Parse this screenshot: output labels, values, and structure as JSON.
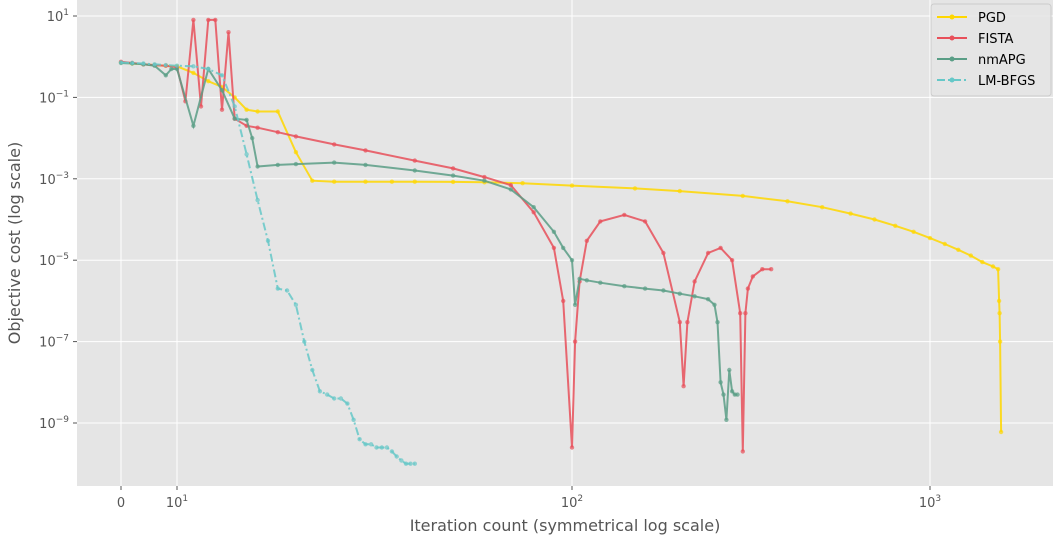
{
  "chart_data": {
    "type": "line",
    "title": "",
    "xlabel": "Iteration count (symmetrical log scale)",
    "ylabel": "Objective cost (log scale)",
    "xscale": "symlog",
    "yscale": "log",
    "xlim": [
      -1,
      1700
    ],
    "ylim": [
      1e-11,
      30
    ],
    "grid": true,
    "legend_position": "top-right",
    "background": "#e5e5e5",
    "x_ticks": [
      {
        "value": 0,
        "base": "0",
        "exp": ""
      },
      {
        "value": 10,
        "base": "10",
        "exp": "1"
      },
      {
        "value": 100,
        "base": "10",
        "exp": "2"
      },
      {
        "value": 1000,
        "base": "10",
        "exp": "3"
      }
    ],
    "y_ticks": [
      {
        "value": 10,
        "base": "10",
        "exp": "1"
      },
      {
        "value": 0.1,
        "base": "10",
        "exp": "−1"
      },
      {
        "value": 0.001,
        "base": "10",
        "exp": "−3"
      },
      {
        "value": 1e-05,
        "base": "10",
        "exp": "−5"
      },
      {
        "value": 1e-07,
        "base": "10",
        "exp": "−7"
      },
      {
        "value": 1e-09,
        "base": "10",
        "exp": "−9"
      }
    ],
    "series": [
      {
        "name": "PGD",
        "color": "#ffd700",
        "style": "solid",
        "x": [
          0,
          2,
          4,
          6,
          8,
          10,
          11,
          12,
          13,
          14,
          15,
          16,
          18,
          20,
          22,
          25,
          30,
          35,
          40,
          50,
          60,
          75,
          100,
          150,
          200,
          300,
          400,
          500,
          600,
          700,
          800,
          900,
          1000,
          1100,
          1200,
          1300,
          1400,
          1500,
          1550,
          1560,
          1565,
          1570,
          1580
        ],
        "y": [
          0.72,
          0.68,
          0.65,
          0.62,
          0.6,
          0.58,
          0.4,
          0.25,
          0.18,
          0.1,
          0.05,
          0.045,
          0.045,
          0.0045,
          0.0009,
          0.00085,
          0.00085,
          0.00085,
          0.00085,
          0.00084,
          0.00082,
          0.00078,
          0.00068,
          0.00058,
          0.0005,
          0.00038,
          0.00028,
          0.0002,
          0.00014,
          0.0001,
          7e-05,
          5e-05,
          3.5e-05,
          2.5e-05,
          1.8e-05,
          1.3e-05,
          9e-06,
          7e-06,
          6e-06,
          1e-06,
          5e-07,
          1e-07,
          6e-10
        ]
      },
      {
        "name": "FISTA",
        "color": "#e8505a",
        "style": "solid",
        "x": [
          0,
          2,
          4,
          6,
          8,
          10,
          10.5,
          11,
          11.5,
          12,
          12.5,
          13,
          13.5,
          14,
          15,
          16,
          18,
          20,
          25,
          30,
          40,
          50,
          60,
          70,
          80,
          90,
          95,
          100,
          102,
          105,
          110,
          120,
          140,
          160,
          180,
          200,
          205,
          210,
          220,
          240,
          260,
          280,
          295,
          300,
          305,
          310,
          320,
          340,
          360
        ],
        "y": [
          0.75,
          0.7,
          0.65,
          0.62,
          0.6,
          0.55,
          0.08,
          8.0,
          0.06,
          8.0,
          8.0,
          0.05,
          4.0,
          0.03,
          0.02,
          0.018,
          0.014,
          0.011,
          0.007,
          0.005,
          0.0028,
          0.0018,
          0.0011,
          0.0007,
          0.00015,
          2e-05,
          1e-06,
          2.5e-10,
          1e-07,
          3e-06,
          3e-05,
          9e-05,
          0.00013,
          9e-05,
          1.5e-05,
          3e-07,
          8e-09,
          3e-07,
          3e-06,
          1.5e-05,
          2e-05,
          1e-05,
          5e-07,
          2e-10,
          5e-07,
          2e-06,
          4e-06,
          6e-06,
          6e-06
        ]
      },
      {
        "name": "nmAPG",
        "color": "#5a9e86",
        "style": "solid",
        "x": [
          0,
          2,
          4,
          6,
          8,
          9,
          10,
          11,
          12,
          13,
          14,
          15,
          15.5,
          16,
          18,
          20,
          25,
          30,
          40,
          50,
          60,
          70,
          80,
          90,
          95,
          100,
          102,
          105,
          110,
          120,
          140,
          160,
          180,
          200,
          220,
          240,
          250,
          255,
          260,
          265,
          270,
          275,
          280,
          285,
          290
        ],
        "y": [
          0.7,
          0.68,
          0.65,
          0.6,
          0.35,
          0.5,
          0.5,
          0.02,
          0.5,
          0.15,
          0.03,
          0.028,
          0.01,
          0.002,
          0.0022,
          0.0023,
          0.0025,
          0.0022,
          0.0016,
          0.0012,
          0.0009,
          0.00055,
          0.0002,
          5e-05,
          2e-05,
          1e-05,
          8e-07,
          3.5e-06,
          3.2e-06,
          2.8e-06,
          2.3e-06,
          2e-06,
          1.8e-06,
          1.5e-06,
          1.3e-06,
          1.1e-06,
          8e-07,
          3e-07,
          1e-08,
          5e-09,
          1.2e-09,
          2e-08,
          6e-09,
          5e-09,
          5e-09
        ]
      },
      {
        "name": "LM-BFGS",
        "color": "#66c8c8",
        "style": "dashdot",
        "x": [
          0,
          2,
          4,
          6,
          8,
          10,
          11,
          12,
          13,
          14,
          15,
          16,
          17,
          18,
          19,
          20,
          21,
          22,
          23,
          24,
          25,
          26,
          27,
          28,
          29,
          30,
          31,
          32,
          33,
          34,
          35,
          36,
          37,
          38,
          39,
          40
        ],
        "y": [
          0.72,
          0.7,
          0.68,
          0.65,
          0.62,
          0.6,
          0.58,
          0.5,
          0.35,
          0.06,
          0.004,
          0.0003,
          3e-05,
          2e-06,
          1.8e-06,
          8e-07,
          1e-07,
          2e-08,
          6e-09,
          5e-09,
          4e-09,
          4e-09,
          3e-09,
          1.2e-09,
          4e-10,
          3e-10,
          3e-10,
          2.5e-10,
          2.5e-10,
          2.5e-10,
          2e-10,
          1.5e-10,
          1.2e-10,
          1e-10,
          1e-10,
          1e-10
        ]
      }
    ]
  }
}
